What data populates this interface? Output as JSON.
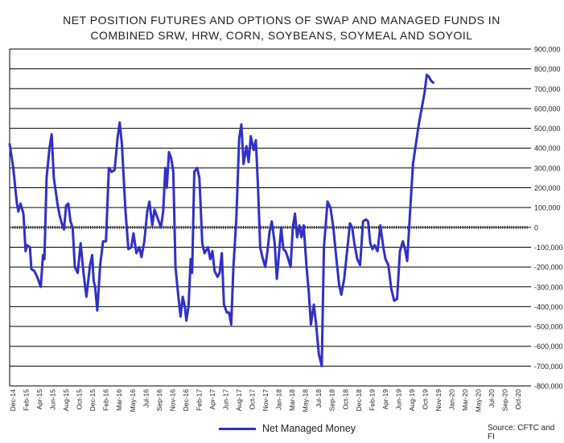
{
  "chart_data": {
    "type": "line",
    "title": "NET POSITION FUTURES AND OPTIONS OF SWAP AND MANAGED FUNDS IN",
    "subtitle": "COMBINED SRW, HRW, CORN, SOYBEANS, SOYMEAL AND SOYOIL",
    "ylim": [
      -800000,
      900000
    ],
    "yticks": [
      "900,000",
      "800,000",
      "700,000",
      "600,000",
      "500,000",
      "400,000",
      "300,000",
      "200,000",
      "100,000",
      "0",
      "-100,000",
      "-200,000",
      "-300,000",
      "-400,000",
      "-500,000",
      "-600,000",
      "-700,000",
      "-800,000"
    ],
    "xlim": [
      0,
      72
    ],
    "xticks": [
      "Dec-14",
      "Feb-15",
      "Apr-15",
      "Jun-15",
      "Aug-15",
      "Oct-15",
      "Dec-15",
      "Feb-16",
      "Mar-16",
      "May-16",
      "Jul-16",
      "Sep-16",
      "Nov-16",
      "Dec-16",
      "Feb-17",
      "Apr-17",
      "Jun-17",
      "Aug-17",
      "Oct-17",
      "Nov-17",
      "Jan-18",
      "Mar-18",
      "May-18",
      "Jul-18",
      "Sep-18",
      "Oct-18",
      "Dec-18",
      "Feb-19",
      "Apr-19",
      "Jun-19",
      "Aug-19",
      "Oct-19",
      "Nov-19",
      "Jan-20",
      "Mar-20",
      "May-20",
      "Jul-20",
      "Sep-20",
      "Oct-20"
    ],
    "legend": "Net Managed Money",
    "source": "Source: CFTC and FI",
    "series": [
      {
        "name": "Net Managed Money",
        "color": "#3030c8",
        "points": [
          [
            0,
            420000
          ],
          [
            0.5,
            300000
          ],
          [
            1,
            120000
          ],
          [
            1.2,
            80000
          ],
          [
            1.5,
            120000
          ],
          [
            1.9,
            70000
          ],
          [
            2.2,
            -120000
          ],
          [
            2.4,
            -90000
          ],
          [
            2.8,
            -100000
          ],
          [
            3,
            -210000
          ],
          [
            3.4,
            -220000
          ],
          [
            3.8,
            -250000
          ],
          [
            4.3,
            -300000
          ],
          [
            4.6,
            -140000
          ],
          [
            4.8,
            -160000
          ],
          [
            5.1,
            250000
          ],
          [
            5.5,
            400000
          ],
          [
            5.8,
            470000
          ],
          [
            6.1,
            250000
          ],
          [
            6.6,
            120000
          ],
          [
            6.9,
            60000
          ],
          [
            7.2,
            20000
          ],
          [
            7.5,
            -10000
          ],
          [
            7.8,
            110000
          ],
          [
            8.1,
            120000
          ],
          [
            8.4,
            30000
          ],
          [
            8.7,
            0
          ],
          [
            9.0,
            -200000
          ],
          [
            9.4,
            -230000
          ],
          [
            9.8,
            -80000
          ],
          [
            10.2,
            -230000
          ],
          [
            10.6,
            -350000
          ],
          [
            11.1,
            -190000
          ],
          [
            11.4,
            -140000
          ],
          [
            11.6,
            -270000
          ],
          [
            11.8,
            -300000
          ],
          [
            12.1,
            -420000
          ],
          [
            12.5,
            -190000
          ],
          [
            12.9,
            -70000
          ],
          [
            13.3,
            -70000
          ],
          [
            13.7,
            300000
          ],
          [
            14.1,
            280000
          ],
          [
            14.5,
            290000
          ],
          [
            14.9,
            450000
          ],
          [
            15.2,
            530000
          ],
          [
            15.5,
            420000
          ],
          [
            16.0,
            80000
          ],
          [
            16.4,
            -110000
          ],
          [
            16.8,
            -100000
          ],
          [
            17.1,
            -30000
          ],
          [
            17.5,
            -130000
          ],
          [
            17.9,
            -100000
          ],
          [
            18.2,
            -150000
          ],
          [
            18.6,
            -70000
          ],
          [
            19.0,
            80000
          ],
          [
            19.3,
            130000
          ],
          [
            19.7,
            10000
          ],
          [
            20.0,
            90000
          ],
          [
            20.3,
            60000
          ],
          [
            20.6,
            30000
          ],
          [
            20.9,
            0
          ],
          [
            21.2,
            80000
          ],
          [
            21.5,
            300000
          ],
          [
            21.7,
            200000
          ],
          [
            22.0,
            380000
          ],
          [
            22.3,
            350000
          ],
          [
            22.6,
            280000
          ],
          [
            22.9,
            -200000
          ],
          [
            23.3,
            -350000
          ],
          [
            23.6,
            -450000
          ],
          [
            23.9,
            -350000
          ],
          [
            24.2,
            -400000
          ],
          [
            24.4,
            -470000
          ],
          [
            24.7,
            -400000
          ],
          [
            25.0,
            -160000
          ],
          [
            25.2,
            -230000
          ],
          [
            25.5,
            280000
          ],
          [
            25.9,
            300000
          ],
          [
            26.2,
            250000
          ],
          [
            26.6,
            -80000
          ],
          [
            26.9,
            -130000
          ],
          [
            27.4,
            -100000
          ],
          [
            27.7,
            -160000
          ],
          [
            28.0,
            -120000
          ],
          [
            28.3,
            -220000
          ],
          [
            28.7,
            -250000
          ],
          [
            29.0,
            -230000
          ],
          [
            29.3,
            -130000
          ],
          [
            29.6,
            -390000
          ],
          [
            30.0,
            -430000
          ],
          [
            30.3,
            -430000
          ],
          [
            30.6,
            -490000
          ],
          [
            30.9,
            -200000
          ],
          [
            31.3,
            40000
          ],
          [
            31.7,
            450000
          ],
          [
            32.0,
            520000
          ],
          [
            32.3,
            320000
          ],
          [
            32.7,
            410000
          ],
          [
            33.0,
            330000
          ],
          [
            33.3,
            460000
          ],
          [
            33.7,
            390000
          ],
          [
            34.0,
            440000
          ],
          [
            34.3,
            200000
          ],
          [
            34.6,
            -100000
          ],
          [
            34.9,
            -150000
          ],
          [
            35.3,
            -200000
          ],
          [
            35.6,
            -120000
          ],
          [
            35.9,
            -20000
          ],
          [
            36.2,
            30000
          ],
          [
            36.6,
            -80000
          ],
          [
            36.9,
            -260000
          ],
          [
            37.2,
            -130000
          ],
          [
            37.5,
            0
          ],
          [
            37.8,
            -110000
          ],
          [
            38.1,
            -120000
          ],
          [
            38.4,
            -150000
          ],
          [
            38.8,
            -200000
          ],
          [
            39.1,
            0
          ],
          [
            39.4,
            70000
          ],
          [
            39.7,
            -50000
          ],
          [
            40.0,
            10000
          ],
          [
            40.3,
            -50000
          ],
          [
            40.6,
            10000
          ],
          [
            41.0,
            -200000
          ],
          [
            41.3,
            -320000
          ],
          [
            41.6,
            -490000
          ],
          [
            42.0,
            -390000
          ],
          [
            42.3,
            -480000
          ],
          [
            42.7,
            -640000
          ],
          [
            43.1,
            -700000
          ],
          [
            43.4,
            -100000
          ],
          [
            43.9,
            130000
          ],
          [
            44.3,
            100000
          ],
          [
            44.7,
            0
          ],
          [
            45.1,
            -150000
          ],
          [
            45.5,
            -290000
          ],
          [
            45.8,
            -340000
          ],
          [
            46.2,
            -260000
          ],
          [
            46.6,
            -120000
          ],
          [
            47.0,
            20000
          ],
          [
            47.3,
            0
          ],
          [
            47.6,
            -80000
          ],
          [
            48.0,
            -160000
          ],
          [
            48.4,
            -190000
          ],
          [
            48.8,
            30000
          ],
          [
            49.2,
            40000
          ],
          [
            49.5,
            30000
          ],
          [
            49.8,
            -80000
          ],
          [
            50.1,
            -110000
          ],
          [
            50.4,
            -90000
          ],
          [
            50.8,
            -120000
          ],
          [
            51.2,
            10000
          ],
          [
            51.6,
            -100000
          ],
          [
            51.9,
            -160000
          ],
          [
            52.3,
            -190000
          ],
          [
            52.7,
            -310000
          ],
          [
            53.1,
            -370000
          ],
          [
            53.5,
            -360000
          ],
          [
            53.9,
            -120000
          ],
          [
            54.3,
            -70000
          ],
          [
            54.6,
            -110000
          ],
          [
            54.9,
            -170000
          ],
          [
            55.3,
            80000
          ],
          [
            55.7,
            320000
          ],
          [
            56.1,
            420000
          ],
          [
            56.5,
            520000
          ],
          [
            56.9,
            600000
          ],
          [
            57.3,
            680000
          ],
          [
            57.6,
            770000
          ],
          [
            57.9,
            760000
          ],
          [
            58.2,
            740000
          ],
          [
            58.5,
            730000
          ]
        ]
      }
    ]
  }
}
